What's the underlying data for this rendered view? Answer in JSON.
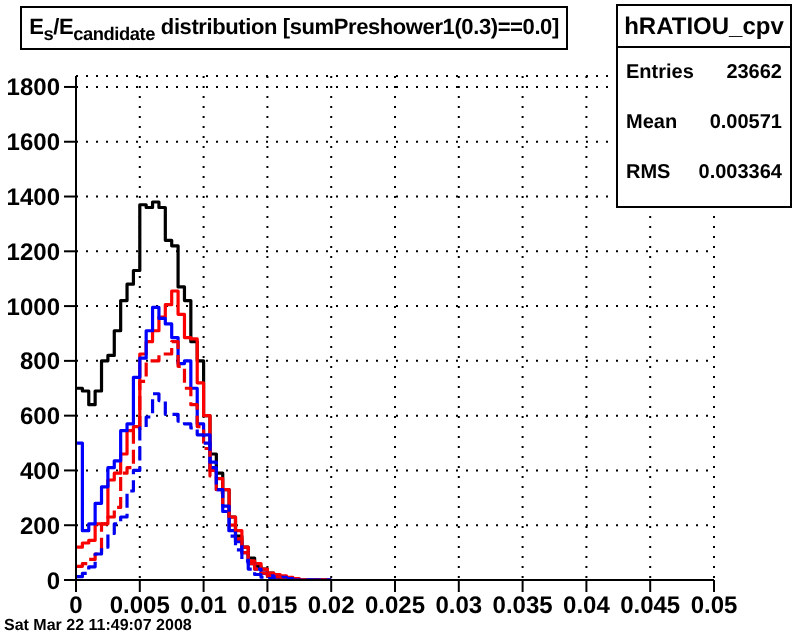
{
  "chart_data": {
    "type": "histogram",
    "title": "E$_{s}$/E$_{candidate}$ distribution [sumPreshower1(0.3)==0.0]",
    "bins": [
      0,
      0.0005,
      0.001,
      0.0015,
      0.002,
      0.0025,
      0.003,
      0.0035,
      0.004,
      0.0045,
      0.005,
      0.0055,
      0.006,
      0.0065,
      0.007,
      0.0075,
      0.008,
      0.0085,
      0.009,
      0.0095,
      0.01,
      0.0105,
      0.011,
      0.0115,
      0.012,
      0.0125,
      0.013,
      0.0135,
      0.014,
      0.0145,
      0.015,
      0.0155,
      0.016,
      0.0165,
      0.017,
      0.0175,
      0.018,
      0.0185,
      0.019,
      0.0195,
      0.02
    ],
    "series": [
      {
        "color": "#000000",
        "line_style": "solid",
        "values": [
          700,
          690,
          640,
          690,
          800,
          820,
          910,
          1020,
          1080,
          1130,
          1370,
          1360,
          1380,
          1360,
          1240,
          1220,
          1070,
          1020,
          870,
          800,
          600,
          460,
          390,
          330,
          230,
          160,
          120,
          80,
          50,
          40,
          25,
          15,
          10,
          5,
          3,
          0,
          0,
          0,
          0,
          0
        ]
      },
      {
        "color": "#ff0000",
        "line_style": "solid",
        "values": [
          120,
          135,
          145,
          205,
          205,
          365,
          390,
          460,
          545,
          560,
          825,
          870,
          910,
          960,
          1005,
          1055,
          970,
          885,
          880,
          720,
          600,
          400,
          370,
          330,
          230,
          180,
          120,
          70,
          60,
          40,
          25,
          20,
          15,
          10,
          5,
          0,
          0,
          0,
          0,
          0
        ]
      },
      {
        "color": "#0000ff",
        "line_style": "solid",
        "values": [
          500,
          180,
          205,
          280,
          340,
          410,
          435,
          545,
          570,
          740,
          810,
          910,
          995,
          955,
          935,
          885,
          790,
          800,
          700,
          570,
          530,
          410,
          330,
          250,
          180,
          140,
          100,
          60,
          40,
          25,
          15,
          10,
          10,
          5,
          0,
          0,
          0,
          0,
          0,
          0
        ]
      },
      {
        "color": "#f00000",
        "line_style": "dashed",
        "values": [
          50,
          60,
          75,
          95,
          205,
          230,
          265,
          390,
          410,
          545,
          725,
          800,
          800,
          825,
          825,
          870,
          780,
          700,
          640,
          560,
          480,
          380,
          320,
          270,
          200,
          150,
          100,
          60,
          40,
          25,
          15,
          10,
          0,
          0,
          0,
          0,
          0,
          0,
          0,
          0
        ]
      },
      {
        "color": "#0000f0",
        "line_style": "dashed",
        "values": [
          12,
          24,
          48,
          95,
          120,
          170,
          205,
          230,
          325,
          400,
          555,
          595,
          680,
          655,
          605,
          605,
          580,
          570,
          555,
          530,
          500,
          430,
          330,
          270,
          160,
          110,
          70,
          40,
          20,
          10,
          5,
          0,
          0,
          0,
          0,
          0,
          0,
          0,
          0,
          0
        ]
      }
    ],
    "xlim": [
      0,
      0.05
    ],
    "xticks": [
      0,
      0.005,
      0.01,
      0.015,
      0.02,
      0.025,
      0.03,
      0.035,
      0.04,
      0.045,
      0.05
    ],
    "ylim": [
      0,
      1840
    ],
    "yticks": [
      0,
      200,
      400,
      600,
      800,
      1000,
      1200,
      1400,
      1600,
      1800
    ],
    "grid": true,
    "annotations": [
      "hRATIOU_cpv",
      "Entries",
      "23662",
      "Mean",
      "0.00571",
      "RMS",
      "0.003364",
      "Sat Mar 22 11:49:07 2008"
    ]
  }
}
